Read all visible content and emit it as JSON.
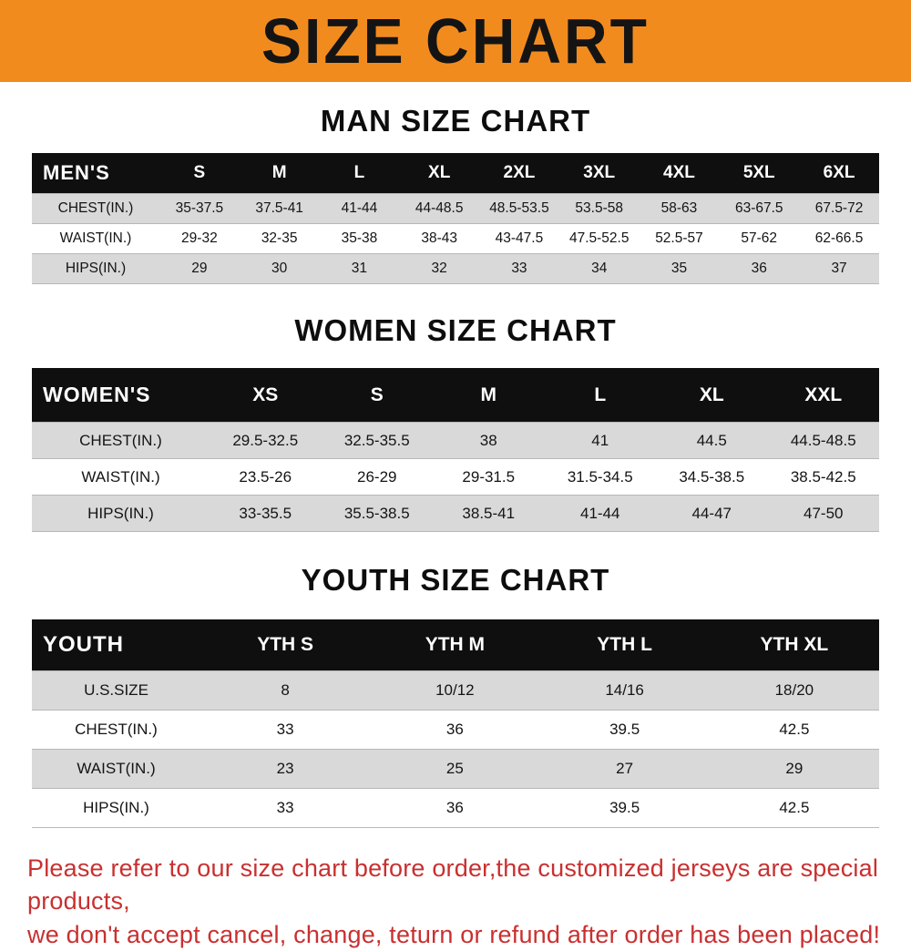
{
  "banner": {
    "title": "SIZE CHART",
    "bg_color": "#f28b1e",
    "text_color": "#141414"
  },
  "sections": [
    {
      "heading": "MAN SIZE CHART",
      "table": {
        "header": [
          "MEN'S",
          "S",
          "M",
          "L",
          "XL",
          "2XL",
          "3XL",
          "4XL",
          "5XL",
          "6XL"
        ],
        "rows": [
          [
            "CHEST(IN.)",
            "35-37.5",
            "37.5-41",
            "41-44",
            "44-48.5",
            "48.5-53.5",
            "53.5-58",
            "58-63",
            "63-67.5",
            "67.5-72"
          ],
          [
            "WAIST(IN.)",
            "29-32",
            "32-35",
            "35-38",
            "38-43",
            "43-47.5",
            "47.5-52.5",
            "52.5-57",
            "57-62",
            "62-66.5"
          ],
          [
            "HIPS(IN.)",
            "29",
            "30",
            "31",
            "32",
            "33",
            "34",
            "35",
            "36",
            "37"
          ]
        ]
      }
    },
    {
      "heading": "WOMEN SIZE CHART",
      "table": {
        "header": [
          "WOMEN'S",
          "XS",
          "S",
          "M",
          "L",
          "XL",
          "XXL"
        ],
        "rows": [
          [
            "CHEST(IN.)",
            "29.5-32.5",
            "32.5-35.5",
            "38",
            "41",
            "44.5",
            "44.5-48.5"
          ],
          [
            "WAIST(IN.)",
            "23.5-26",
            "26-29",
            "29-31.5",
            "31.5-34.5",
            "34.5-38.5",
            "38.5-42.5"
          ],
          [
            "HIPS(IN.)",
            "33-35.5",
            "35.5-38.5",
            "38.5-41",
            "41-44",
            "44-47",
            "47-50"
          ]
        ]
      }
    },
    {
      "heading": "YOUTH SIZE CHART",
      "table": {
        "header": [
          "YOUTH",
          "YTH S",
          "YTH M",
          "YTH L",
          "YTH XL"
        ],
        "rows": [
          [
            "U.S.SIZE",
            "8",
            "10/12",
            "14/16",
            "18/20"
          ],
          [
            "CHEST(IN.)",
            "33",
            "36",
            "39.5",
            "42.5"
          ],
          [
            "WAIST(IN.)",
            "23",
            "25",
            "27",
            "29"
          ],
          [
            "HIPS(IN.)",
            "33",
            "36",
            "39.5",
            "42.5"
          ]
        ]
      }
    }
  ],
  "footer": {
    "line1": "Please refer to our size chart before order,the customized jerseys are special products,",
    "line2": "we don't accept cancel, change, teturn or refund after order has been placed!",
    "text_color": "#c93030"
  }
}
